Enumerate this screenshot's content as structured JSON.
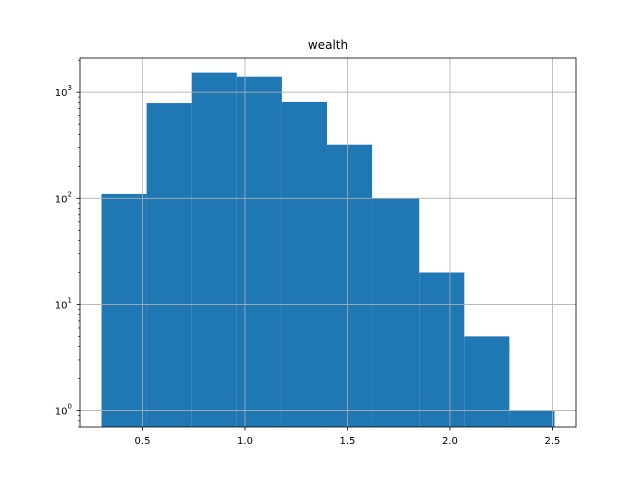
{
  "chart_data": {
    "type": "bar",
    "title": "wealth",
    "xlabel": "",
    "ylabel": "",
    "yscale": "log",
    "grid": true,
    "bar_color": "#1f77b4",
    "bins": [
      {
        "x0": 0.3,
        "x1": 0.52,
        "count": 110
      },
      {
        "x0": 0.52,
        "x1": 0.74,
        "count": 790
      },
      {
        "x0": 0.74,
        "x1": 0.96,
        "count": 1530
      },
      {
        "x0": 0.96,
        "x1": 1.18,
        "count": 1400
      },
      {
        "x0": 1.18,
        "x1": 1.4,
        "count": 810
      },
      {
        "x0": 1.4,
        "x1": 1.62,
        "count": 320
      },
      {
        "x0": 1.62,
        "x1": 1.85,
        "count": 100
      },
      {
        "x0": 1.85,
        "x1": 2.07,
        "count": 20
      },
      {
        "x0": 2.07,
        "x1": 2.29,
        "count": 5
      },
      {
        "x0": 2.29,
        "x1": 2.51,
        "count": 1
      }
    ],
    "xlim": [
      0.195,
      2.615
    ],
    "ylim": [
      0.7,
      2100
    ],
    "xticks": [
      {
        "value": 0.5,
        "label": "0.5"
      },
      {
        "value": 1.0,
        "label": "1.0"
      },
      {
        "value": 1.5,
        "label": "1.5"
      },
      {
        "value": 2.0,
        "label": "2.0"
      },
      {
        "value": 2.5,
        "label": "2.5"
      }
    ],
    "yticks": [
      {
        "value": 1,
        "base": "10",
        "exp": "0"
      },
      {
        "value": 10,
        "base": "10",
        "exp": "1"
      },
      {
        "value": 100,
        "base": "10",
        "exp": "2"
      },
      {
        "value": 1000,
        "base": "10",
        "exp": "3"
      }
    ]
  }
}
